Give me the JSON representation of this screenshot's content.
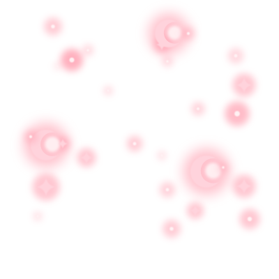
{
  "image": {
    "background": "#ffffff",
    "glow_color": "#ff8fa3",
    "core_color": "#fff4f6",
    "mark_color": "#ffd3dc",
    "moon_count": 3,
    "sparkle_count": 5,
    "dot_count": 18
  }
}
